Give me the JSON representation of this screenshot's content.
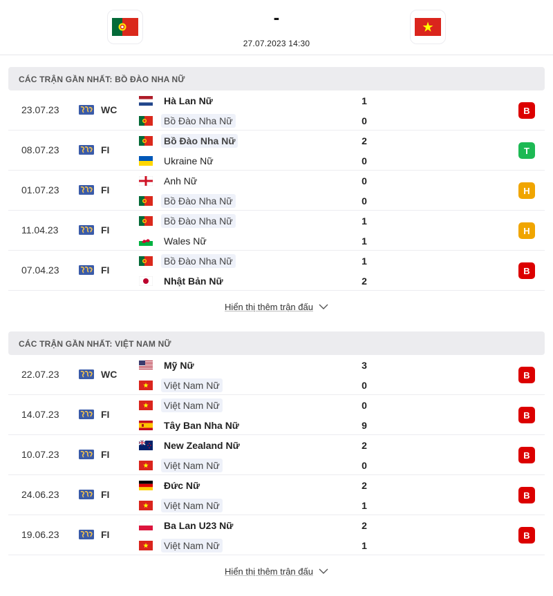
{
  "header": {
    "score": "-",
    "kickoff": "27.07.2023 14:30",
    "home_flag": "portugal-flag",
    "away_flag": "vietnam-flag"
  },
  "sections": [
    {
      "title": "CÁC TRẬN GẦN NHẤT: BỒ ĐÀO NHA NỮ",
      "more_label": "Hiển thị thêm trận đấu",
      "matches": [
        {
          "date": "23.07.23",
          "comp": "WC",
          "team1": {
            "name": "Hà Lan Nữ",
            "flag": "netherlands",
            "goals": "1",
            "bold": true,
            "hl": false
          },
          "team2": {
            "name": "Bồ Đào Nha Nữ",
            "flag": "portugal",
            "goals": "0",
            "bold": false,
            "hl": true
          },
          "result": "B",
          "result_color": "#dc0000"
        },
        {
          "date": "08.07.23",
          "comp": "FI",
          "team1": {
            "name": "Bồ Đào Nha Nữ",
            "flag": "portugal",
            "goals": "2",
            "bold": true,
            "hl": true
          },
          "team2": {
            "name": "Ukraine Nữ",
            "flag": "ukraine",
            "goals": "0",
            "bold": false,
            "hl": false
          },
          "result": "T",
          "result_color": "#1db954"
        },
        {
          "date": "01.07.23",
          "comp": "FI",
          "team1": {
            "name": "Anh Nữ",
            "flag": "england",
            "goals": "0",
            "bold": false,
            "hl": false
          },
          "team2": {
            "name": "Bồ Đào Nha Nữ",
            "flag": "portugal",
            "goals": "0",
            "bold": false,
            "hl": true
          },
          "result": "H",
          "result_color": "#f0a500"
        },
        {
          "date": "11.04.23",
          "comp": "FI",
          "team1": {
            "name": "Bồ Đào Nha Nữ",
            "flag": "portugal",
            "goals": "1",
            "bold": false,
            "hl": true
          },
          "team2": {
            "name": "Wales Nữ",
            "flag": "wales",
            "goals": "1",
            "bold": false,
            "hl": false
          },
          "result": "H",
          "result_color": "#f0a500"
        },
        {
          "date": "07.04.23",
          "comp": "FI",
          "team1": {
            "name": "Bồ Đào Nha Nữ",
            "flag": "portugal",
            "goals": "1",
            "bold": false,
            "hl": true
          },
          "team2": {
            "name": "Nhật Bản Nữ",
            "flag": "japan",
            "goals": "2",
            "bold": true,
            "hl": false
          },
          "result": "B",
          "result_color": "#dc0000"
        }
      ]
    },
    {
      "title": "CÁC TRẬN GẦN NHẤT: VIỆT NAM NỮ",
      "more_label": "Hiển thị thêm trận đấu",
      "matches": [
        {
          "date": "22.07.23",
          "comp": "WC",
          "team1": {
            "name": "Mỹ Nữ",
            "flag": "usa",
            "goals": "3",
            "bold": true,
            "hl": false
          },
          "team2": {
            "name": "Việt Nam Nữ",
            "flag": "vietnam",
            "goals": "0",
            "bold": false,
            "hl": true
          },
          "result": "B",
          "result_color": "#dc0000"
        },
        {
          "date": "14.07.23",
          "comp": "FI",
          "team1": {
            "name": "Việt Nam Nữ",
            "flag": "vietnam",
            "goals": "0",
            "bold": false,
            "hl": true
          },
          "team2": {
            "name": "Tây Ban Nha Nữ",
            "flag": "spain",
            "goals": "9",
            "bold": true,
            "hl": false
          },
          "result": "B",
          "result_color": "#dc0000"
        },
        {
          "date": "10.07.23",
          "comp": "FI",
          "team1": {
            "name": "New Zealand Nữ",
            "flag": "new-zealand",
            "goals": "2",
            "bold": true,
            "hl": false
          },
          "team2": {
            "name": "Việt Nam Nữ",
            "flag": "vietnam",
            "goals": "0",
            "bold": false,
            "hl": true
          },
          "result": "B",
          "result_color": "#dc0000"
        },
        {
          "date": "24.06.23",
          "comp": "FI",
          "team1": {
            "name": "Đức Nữ",
            "flag": "germany",
            "goals": "2",
            "bold": true,
            "hl": false
          },
          "team2": {
            "name": "Việt Nam Nữ",
            "flag": "vietnam",
            "goals": "1",
            "bold": false,
            "hl": true
          },
          "result": "B",
          "result_color": "#dc0000"
        },
        {
          "date": "19.06.23",
          "comp": "FI",
          "team1": {
            "name": "Ba Lan U23 Nữ",
            "flag": "poland",
            "goals": "2",
            "bold": true,
            "hl": false
          },
          "team2": {
            "name": "Việt Nam Nữ",
            "flag": "vietnam",
            "goals": "1",
            "bold": false,
            "hl": true
          },
          "result": "B",
          "result_color": "#dc0000"
        }
      ]
    }
  ]
}
